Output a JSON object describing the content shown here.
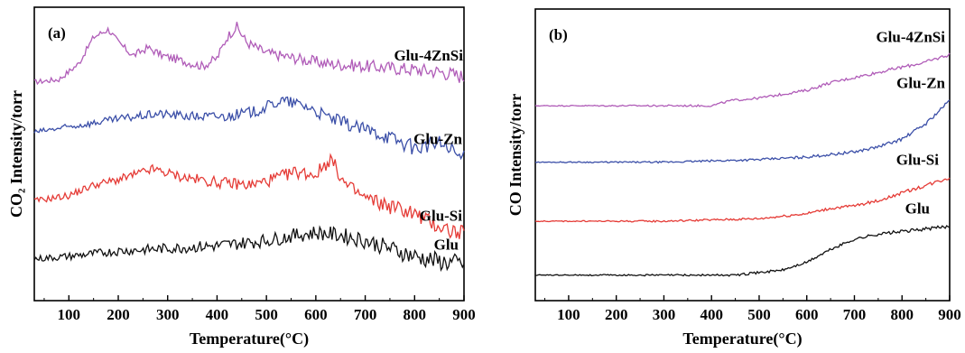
{
  "chart_data": [
    {
      "type": "line",
      "panel_label": "(a)",
      "xlabel": "Temperature(°C)",
      "ylabel": "CO₂ Intensity/torr",
      "xlim": [
        30,
        900
      ],
      "ylim": [
        0,
        100
      ],
      "y_ticks_labeled": false,
      "x_ticks": [
        100,
        200,
        300,
        400,
        500,
        600,
        700,
        800,
        900
      ],
      "series": [
        {
          "name": "Glu-4ZnSi",
          "color": "#b05cb8",
          "x": [
            30,
            80,
            120,
            150,
            180,
            200,
            230,
            260,
            290,
            330,
            370,
            400,
            420,
            440,
            460,
            500,
            560,
            620,
            700,
            780,
            850,
            900
          ],
          "y": [
            75,
            76,
            82,
            92,
            95,
            90,
            85,
            88,
            85,
            83,
            81,
            84,
            92,
            96,
            90,
            86,
            84,
            82,
            81,
            80,
            79,
            77
          ]
        },
        {
          "name": "Glu-Zn",
          "color": "#3b4fa8",
          "x": [
            30,
            100,
            200,
            280,
            350,
            420,
            480,
            530,
            580,
            620,
            680,
            740,
            800,
            850,
            880,
            900
          ],
          "y": [
            56,
            58,
            61,
            63,
            62,
            62,
            64,
            68,
            66,
            62,
            58,
            55,
            50,
            52,
            48,
            46
          ]
        },
        {
          "name": "Glu-Si",
          "color": "#e53b36",
          "x": [
            30,
            100,
            150,
            200,
            270,
            330,
            400,
            470,
            510,
            560,
            600,
            630,
            660,
            700,
            750,
            790,
            830,
            870,
            900
          ],
          "y": [
            30,
            32,
            36,
            38,
            42,
            39,
            37,
            36,
            38,
            41,
            40,
            46,
            36,
            31,
            28,
            26,
            22,
            19,
            17
          ]
        },
        {
          "name": "Glu",
          "color": "#111111",
          "x": [
            30,
            100,
            200,
            300,
            400,
            500,
            560,
            600,
            650,
            700,
            750,
            800,
            850,
            900
          ],
          "y": [
            8,
            9,
            11,
            12,
            13,
            15,
            17,
            18,
            17,
            15,
            12,
            9,
            7,
            6
          ]
        }
      ]
    },
    {
      "type": "line",
      "panel_label": "(b)",
      "xlabel": "Temperature(°C)",
      "ylabel": "CO Intensity/torr",
      "xlim": [
        30,
        900
      ],
      "ylim": [
        0,
        100
      ],
      "y_ticks_labeled": false,
      "x_ticks": [
        100,
        200,
        300,
        400,
        500,
        600,
        700,
        800,
        900
      ],
      "series": [
        {
          "name": "Glu-4ZnSi",
          "color": "#b05cb8",
          "x": [
            30,
            200,
            400,
            440,
            500,
            600,
            650,
            700,
            750,
            800,
            850,
            900
          ],
          "y": [
            68,
            68,
            68,
            70,
            71,
            74,
            77,
            79,
            81,
            83,
            85,
            88
          ]
        },
        {
          "name": "Glu-Zn",
          "color": "#3b4fa8",
          "x": [
            30,
            300,
            500,
            600,
            700,
            750,
            800,
            850,
            900
          ],
          "y": [
            46,
            46,
            47,
            48,
            50,
            52,
            55,
            61,
            70
          ]
        },
        {
          "name": "Glu-Si",
          "color": "#e53b36",
          "x": [
            30,
            300,
            500,
            600,
            650,
            700,
            750,
            800,
            850,
            900
          ],
          "y": [
            23,
            23,
            24,
            26,
            28,
            29,
            31,
            34,
            37,
            40
          ]
        },
        {
          "name": "Glu",
          "color": "#111111",
          "x": [
            30,
            300,
            450,
            500,
            550,
            600,
            650,
            700,
            750,
            800,
            850,
            900
          ],
          "y": [
            2,
            2,
            2,
            3,
            4,
            7,
            12,
            16,
            18,
            19,
            20,
            21
          ]
        }
      ]
    }
  ]
}
